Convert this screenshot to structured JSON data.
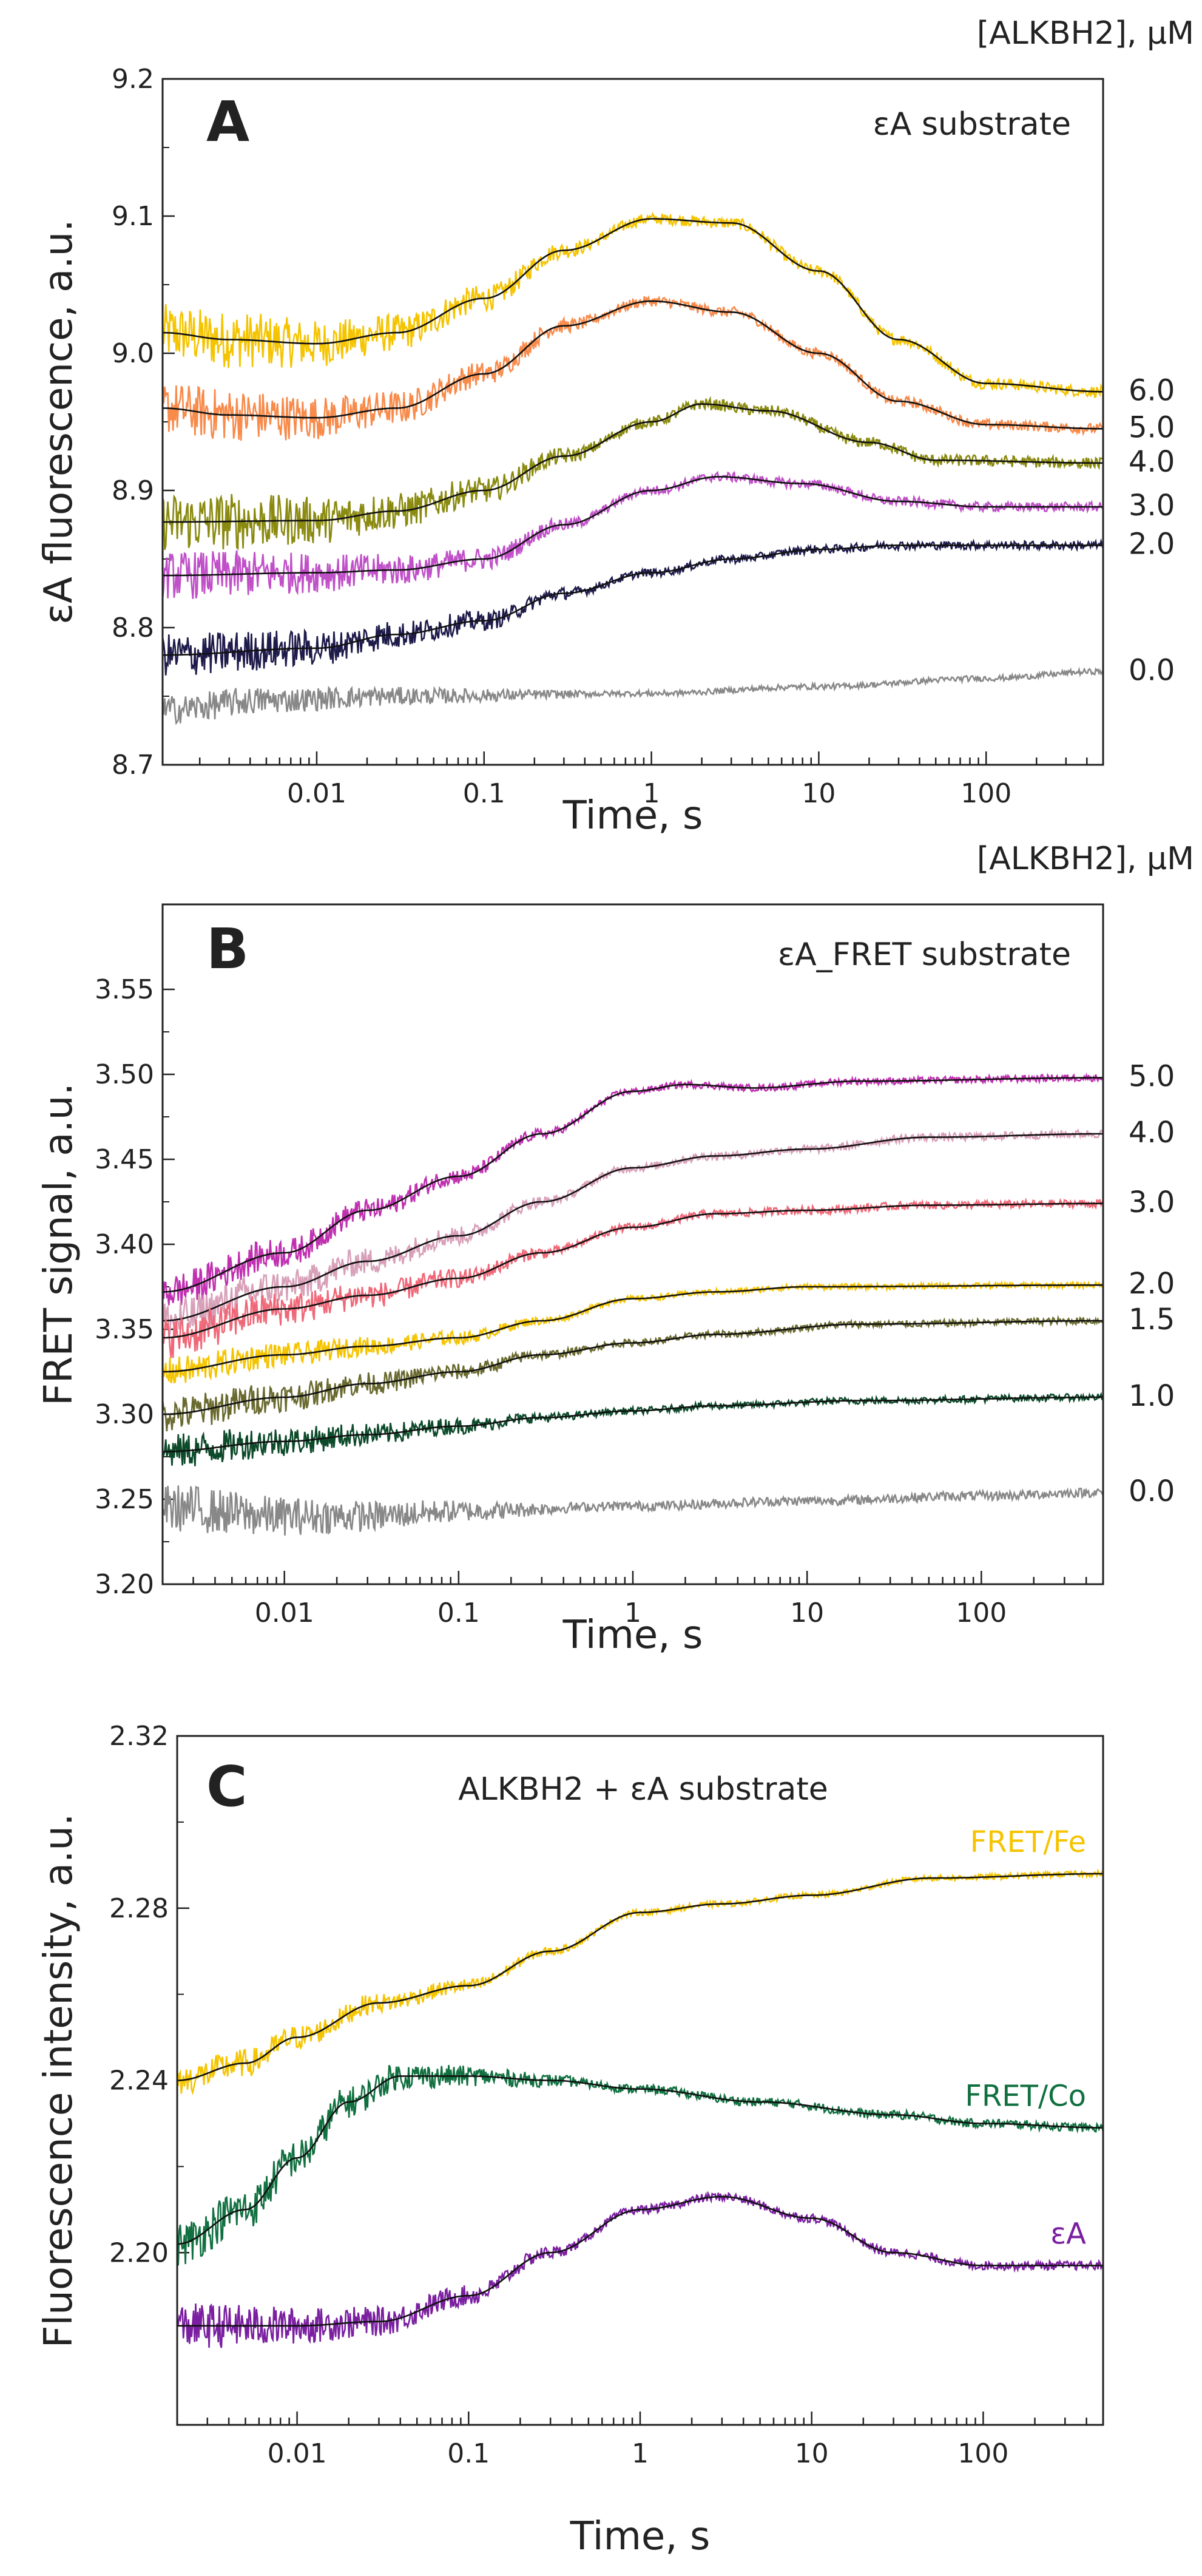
{
  "figure_type": "multi-panel kinetic traces",
  "chart_data": [
    {
      "type": "line",
      "panel": "A",
      "title": "εA substrate",
      "concentration_header": "[ALKBH2], μM",
      "xlabel": "Time, s",
      "ylabel": "εA fluorescence, a.u.",
      "xscale": "log",
      "xlim": [
        0.0012,
        500
      ],
      "ylim": [
        8.7,
        9.2
      ],
      "yticks": [
        8.7,
        8.8,
        8.9,
        9.0,
        9.1,
        9.2
      ],
      "xticks": [
        0.01,
        0.1,
        1,
        10,
        100
      ],
      "xtick_labels": [
        "0.01",
        "0.1",
        "1",
        "10",
        "100"
      ],
      "series": [
        {
          "name": "6.0",
          "color": "#f5c400",
          "noise": 0.012,
          "points": [
            [
              0.0012,
              9.015
            ],
            [
              0.003,
              9.01
            ],
            [
              0.01,
              9.007
            ],
            [
              0.03,
              9.015
            ],
            [
              0.1,
              9.04
            ],
            [
              0.3,
              9.075
            ],
            [
              1,
              9.098
            ],
            [
              3,
              9.095
            ],
            [
              10,
              9.06
            ],
            [
              30,
              9.01
            ],
            [
              100,
              8.978
            ],
            [
              500,
              8.972
            ]
          ]
        },
        {
          "name": "5.0",
          "color": "#f88a4a",
          "noise": 0.011,
          "points": [
            [
              0.0012,
              8.96
            ],
            [
              0.003,
              8.955
            ],
            [
              0.01,
              8.953
            ],
            [
              0.03,
              8.96
            ],
            [
              0.1,
              8.985
            ],
            [
              0.3,
              9.02
            ],
            [
              1,
              9.038
            ],
            [
              3,
              9.03
            ],
            [
              10,
              9.0
            ],
            [
              30,
              8.965
            ],
            [
              100,
              8.948
            ],
            [
              500,
              8.945
            ]
          ]
        },
        {
          "name": "4.0",
          "color": "#8a8a10",
          "noise": 0.012,
          "points": [
            [
              0.0012,
              8.877
            ],
            [
              0.01,
              8.878
            ],
            [
              0.03,
              8.885
            ],
            [
              0.1,
              8.9
            ],
            [
              0.3,
              8.925
            ],
            [
              1,
              8.95
            ],
            [
              2,
              8.963
            ],
            [
              5,
              8.958
            ],
            [
              20,
              8.935
            ],
            [
              50,
              8.922
            ],
            [
              500,
              8.92
            ]
          ]
        },
        {
          "name": "3.0",
          "color": "#c050c8",
          "noise": 0.01,
          "points": [
            [
              0.0012,
              8.838
            ],
            [
              0.01,
              8.84
            ],
            [
              0.03,
              8.842
            ],
            [
              0.1,
              8.85
            ],
            [
              0.3,
              8.875
            ],
            [
              1,
              8.9
            ],
            [
              2.5,
              8.91
            ],
            [
              8,
              8.905
            ],
            [
              30,
              8.892
            ],
            [
              100,
              8.888
            ],
            [
              500,
              8.888
            ]
          ]
        },
        {
          "name": "2.0",
          "color": "#1e1b4a",
          "noise": 0.009,
          "points": [
            [
              0.0012,
              8.78
            ],
            [
              0.01,
              8.785
            ],
            [
              0.03,
              8.795
            ],
            [
              0.1,
              8.805
            ],
            [
              0.3,
              8.825
            ],
            [
              1,
              8.84
            ],
            [
              3,
              8.85
            ],
            [
              10,
              8.857
            ],
            [
              30,
              8.86
            ],
            [
              500,
              8.86
            ]
          ]
        },
        {
          "name": "0.0",
          "color": "#888888",
          "noise": 0.006,
          "points": [
            [
              0.0012,
              8.74
            ],
            [
              0.005,
              8.747
            ],
            [
              0.03,
              8.75
            ],
            [
              1,
              8.752
            ],
            [
              10,
              8.757
            ],
            [
              100,
              8.763
            ],
            [
              500,
              8.768
            ]
          ]
        }
      ],
      "fit_color": "#111111"
    },
    {
      "type": "line",
      "panel": "B",
      "title": "εA_FRET substrate",
      "concentration_header": "[ALKBH2], μM",
      "xlabel": "Time, s",
      "ylabel": "FRET signal, a.u.",
      "xscale": "log",
      "xlim": [
        0.002,
        500
      ],
      "ylim": [
        3.2,
        3.6
      ],
      "yticks": [
        3.2,
        3.25,
        3.3,
        3.35,
        3.4,
        3.45,
        3.5,
        3.55
      ],
      "ytick_labels": [
        "3.20",
        "3.25",
        "3.30",
        "3.35",
        "3.40",
        "3.45",
        "3.50",
        "3.55"
      ],
      "xticks": [
        0.01,
        0.1,
        1,
        10,
        100
      ],
      "xtick_labels": [
        "0.01",
        "0.1",
        "1",
        "10",
        "100"
      ],
      "series": [
        {
          "name": "5.0",
          "color": "#c030b0",
          "noise": 0.006,
          "points": [
            [
              0.002,
              3.372
            ],
            [
              0.01,
              3.395
            ],
            [
              0.03,
              3.42
            ],
            [
              0.1,
              3.44
            ],
            [
              0.3,
              3.465
            ],
            [
              1,
              3.49
            ],
            [
              2,
              3.494
            ],
            [
              5,
              3.492
            ],
            [
              20,
              3.496
            ],
            [
              500,
              3.498
            ]
          ]
        },
        {
          "name": "4.0",
          "color": "#d8a0b8",
          "noise": 0.007,
          "points": [
            [
              0.002,
              3.355
            ],
            [
              0.01,
              3.375
            ],
            [
              0.03,
              3.39
            ],
            [
              0.1,
              3.405
            ],
            [
              0.3,
              3.425
            ],
            [
              1,
              3.445
            ],
            [
              3,
              3.452
            ],
            [
              10,
              3.456
            ],
            [
              50,
              3.463
            ],
            [
              500,
              3.465
            ]
          ]
        },
        {
          "name": "3.0",
          "color": "#f06878",
          "noise": 0.007,
          "points": [
            [
              0.002,
              3.345
            ],
            [
              0.01,
              3.362
            ],
            [
              0.03,
              3.37
            ],
            [
              0.1,
              3.38
            ],
            [
              0.3,
              3.395
            ],
            [
              1,
              3.41
            ],
            [
              3,
              3.418
            ],
            [
              10,
              3.42
            ],
            [
              50,
              3.423
            ],
            [
              500,
              3.424
            ]
          ]
        },
        {
          "name": "2.0",
          "color": "#f5c400",
          "noise": 0.005,
          "points": [
            [
              0.002,
              3.325
            ],
            [
              0.01,
              3.335
            ],
            [
              0.03,
              3.34
            ],
            [
              0.1,
              3.345
            ],
            [
              0.3,
              3.355
            ],
            [
              1,
              3.368
            ],
            [
              3,
              3.372
            ],
            [
              10,
              3.375
            ],
            [
              500,
              3.376
            ]
          ]
        },
        {
          "name": "1.5",
          "color": "#6a6a30",
          "noise": 0.006,
          "points": [
            [
              0.002,
              3.3
            ],
            [
              0.01,
              3.31
            ],
            [
              0.03,
              3.318
            ],
            [
              0.1,
              3.325
            ],
            [
              0.3,
              3.335
            ],
            [
              1,
              3.342
            ],
            [
              3,
              3.347
            ],
            [
              20,
              3.353
            ],
            [
              500,
              3.355
            ]
          ]
        },
        {
          "name": "1.0",
          "color": "#0c4a2a",
          "noise": 0.006,
          "points": [
            [
              0.002,
              3.278
            ],
            [
              0.01,
              3.284
            ],
            [
              0.03,
              3.288
            ],
            [
              0.1,
              3.293
            ],
            [
              0.3,
              3.298
            ],
            [
              1,
              3.302
            ],
            [
              3,
              3.305
            ],
            [
              20,
              3.308
            ],
            [
              500,
              3.31
            ]
          ]
        },
        {
          "name": "0.0",
          "color": "#888888",
          "noise": 0.008,
          "points": [
            [
              0.002,
              3.245
            ],
            [
              0.01,
              3.24
            ],
            [
              0.03,
              3.24
            ],
            [
              0.1,
              3.243
            ],
            [
              1,
              3.246
            ],
            [
              10,
              3.249
            ],
            [
              100,
              3.252
            ],
            [
              500,
              3.254
            ]
          ]
        }
      ],
      "fit_color": "#111111"
    },
    {
      "type": "line",
      "panel": "C",
      "title": "ALKBH2 + εA substrate",
      "xlabel": "Time, s",
      "ylabel": "Fluorescence intensity, a.u.",
      "xscale": "log",
      "xlim": [
        0.002,
        500
      ],
      "ylim": [
        2.16,
        2.32
      ],
      "yticks": [
        2.2,
        2.24,
        2.28,
        2.32
      ],
      "ytick_labels": [
        "2.20",
        "2.24",
        "2.28",
        "2.32"
      ],
      "xticks": [
        0.01,
        0.1,
        1,
        10,
        100
      ],
      "xtick_labels": [
        "0.01",
        "0.1",
        "1",
        "10",
        "100"
      ],
      "series": [
        {
          "name": "FRET/Fe",
          "color": "#f5c400",
          "noise": 0.002,
          "points": [
            [
              0.002,
              2.24
            ],
            [
              0.005,
              2.244
            ],
            [
              0.01,
              2.25
            ],
            [
              0.03,
              2.258
            ],
            [
              0.1,
              2.262
            ],
            [
              0.3,
              2.27
            ],
            [
              1,
              2.279
            ],
            [
              3,
              2.281
            ],
            [
              10,
              2.283
            ],
            [
              50,
              2.287
            ],
            [
              500,
              2.288
            ]
          ]
        },
        {
          "name": "FRET/Co",
          "color": "#117040",
          "noise": 0.003,
          "points": [
            [
              0.002,
              2.202
            ],
            [
              0.005,
              2.21
            ],
            [
              0.01,
              2.222
            ],
            [
              0.02,
              2.235
            ],
            [
              0.04,
              2.241
            ],
            [
              0.1,
              2.241
            ],
            [
              0.3,
              2.24
            ],
            [
              1,
              2.238
            ],
            [
              5,
              2.235
            ],
            [
              30,
              2.232
            ],
            [
              100,
              2.23
            ],
            [
              500,
              2.229
            ]
          ]
        },
        {
          "name": "εA",
          "color": "#7a1fa0",
          "noise": 0.003,
          "points": [
            [
              0.002,
              2.183
            ],
            [
              0.01,
              2.183
            ],
            [
              0.03,
              2.184
            ],
            [
              0.1,
              2.19
            ],
            [
              0.3,
              2.2
            ],
            [
              1,
              2.21
            ],
            [
              3,
              2.213
            ],
            [
              10,
              2.208
            ],
            [
              30,
              2.2
            ],
            [
              100,
              2.197
            ],
            [
              500,
              2.197
            ]
          ]
        }
      ],
      "fit_color": "#111111"
    }
  ]
}
